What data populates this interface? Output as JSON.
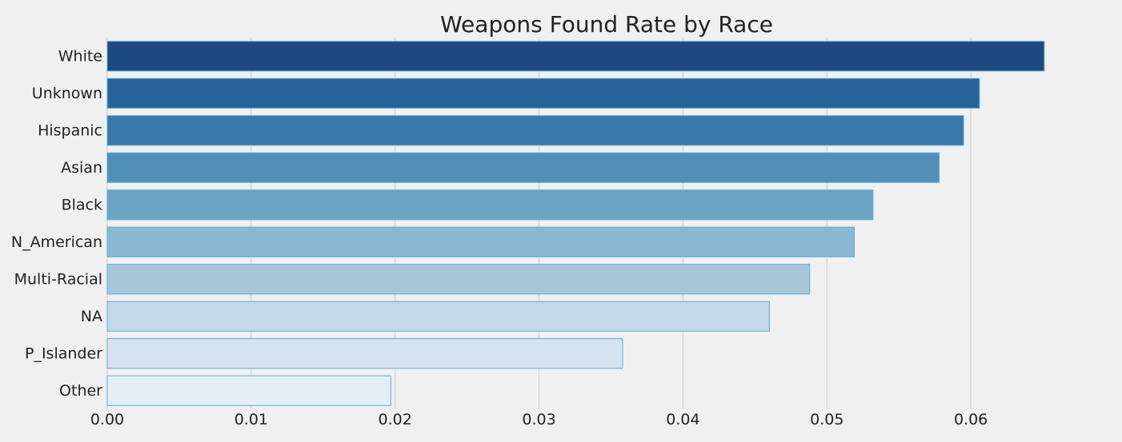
{
  "chart_data": {
    "type": "bar",
    "orientation": "horizontal",
    "title": "Weapons Found Rate by Race",
    "xlabel": "",
    "ylabel": "",
    "categories": [
      "White",
      "Unknown",
      "Hispanic",
      "Asian",
      "Black",
      "N_American",
      "Multi-Racial",
      "NA",
      "P_Islander",
      "Other"
    ],
    "values": [
      0.0651,
      0.0606,
      0.0595,
      0.0578,
      0.0532,
      0.0519,
      0.0488,
      0.046,
      0.0358,
      0.0197
    ],
    "xlim": [
      0.0,
      0.0695
    ],
    "xticks": [
      0.0,
      0.01,
      0.02,
      0.03,
      0.04,
      0.05,
      0.06
    ],
    "xtick_labels": [
      "0.00",
      "0.01",
      "0.02",
      "0.03",
      "0.04",
      "0.05",
      "0.06"
    ],
    "grid": true,
    "legend": "none",
    "colors": [
      "#1c4a80",
      "#276298",
      "#3a78aa",
      "#528fb8",
      "#6ba3c5",
      "#8ab7d1",
      "#a8c8da",
      "#c3d8e8",
      "#d6e3ef",
      "#e4eef6"
    ],
    "edge_color": "#5aaed6",
    "background": "#f0f0f0"
  }
}
